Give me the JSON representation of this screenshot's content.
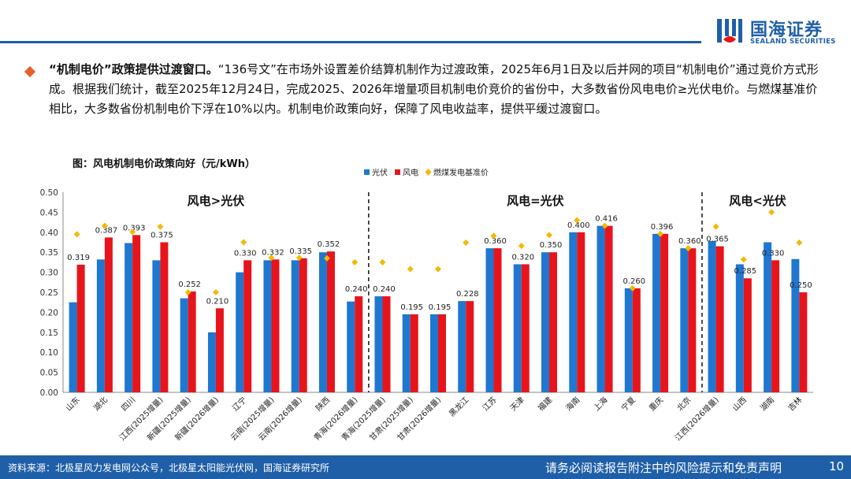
{
  "header": {
    "brand_cn": "国海证券",
    "brand_en": "SEALAND SECURITIES"
  },
  "body": {
    "lead_bold": "“机制电价”政策提供过渡窗口。",
    "text": "“136号文”在市场外设置差价结算机制作为过渡政策，2025年6月1日及以后并网的项目“机制电价”通过竞价方式形成。根据我们统计，截至2025年12月24日，完成2025、2026年增量项目机制电价竞价的省份中，大多数省份风电电价≥光伏电价。与燃煤基准价相比，大多数省份机制电价下浮在10%以内。机制电价政策向好，保障了风电收益率，提供平缓过渡窗口。"
  },
  "figure": {
    "title": "图：风电机制电价政策向好（元/kWh）"
  },
  "chart_data": {
    "type": "bar",
    "title": "图：风电机制电价政策向好（元/kWh）",
    "ylabel": "元/kWh",
    "ylim": [
      0,
      0.5
    ],
    "yticks": [
      "0.00",
      "0.05",
      "0.10",
      "0.15",
      "0.20",
      "0.25",
      "0.30",
      "0.35",
      "0.40",
      "0.45",
      "0.50"
    ],
    "categories": [
      "山东",
      "湖北",
      "四川",
      "江西(2025增量)",
      "新疆(2025增量)",
      "新疆(2026增量)",
      "辽宁",
      "云南(2025增量)",
      "云南(2026增量)",
      "陕西",
      "青海(2026增量)",
      "青海(2025增量)",
      "甘肃(2025增量)",
      "甘肃(2026增量)",
      "黑龙江",
      "江苏",
      "天津",
      "福建",
      "海南",
      "上海",
      "宁夏",
      "重庆",
      "北京",
      "江西(2026增量)",
      "山西",
      "湖南",
      "吉林"
    ],
    "series": [
      {
        "name": "光伏",
        "color": "#1f77d0",
        "values": [
          0.225,
          0.332,
          0.373,
          0.33,
          0.235,
          0.15,
          0.3,
          0.33,
          0.33,
          0.35,
          0.227,
          0.24,
          0.195,
          0.195,
          0.228,
          0.36,
          0.32,
          0.35,
          0.4,
          0.416,
          0.26,
          0.396,
          0.36,
          0.378,
          0.32,
          0.375,
          0.333
        ]
      },
      {
        "name": "风电",
        "color": "#e8141b",
        "values": [
          0.319,
          0.387,
          0.393,
          0.375,
          0.252,
          0.21,
          0.33,
          0.332,
          0.335,
          0.352,
          0.24,
          0.24,
          0.195,
          0.195,
          0.228,
          0.36,
          0.32,
          0.35,
          0.4,
          0.416,
          0.26,
          0.396,
          0.36,
          0.365,
          0.285,
          0.33,
          0.25
        ]
      },
      {
        "name": "燃煤发电基准价",
        "color": "#f5b800",
        "values": [
          0.395,
          0.416,
          0.401,
          0.414,
          0.25,
          0.25,
          0.375,
          0.336,
          0.336,
          0.335,
          0.325,
          0.325,
          0.308,
          0.308,
          0.374,
          0.391,
          0.366,
          0.393,
          0.43,
          0.416,
          0.26,
          0.396,
          0.36,
          0.414,
          0.332,
          0.45,
          0.374
        ]
      }
    ],
    "labels": [
      "0.319",
      "0.387",
      "0.393",
      "0.375",
      "0.252",
      "0.210",
      "0.330",
      "0.332",
      "0.335",
      "0.352",
      "0.240",
      "0.240",
      "0.195",
      "0.195",
      "0.228",
      "0.360",
      "0.320",
      "0.350",
      "0.400",
      "0.416",
      "0.260",
      "0.396",
      "0.360",
      "0.365",
      "0.285",
      "0.330",
      "0.250"
    ],
    "groups": [
      {
        "label": "风电>光伏",
        "start": 0,
        "end": 10
      },
      {
        "label": "风电=光伏",
        "start": 11,
        "end": 22
      },
      {
        "label": "风电<光伏",
        "start": 23,
        "end": 26
      }
    ],
    "legend_position": "top-center"
  },
  "footer": {
    "source": "资料来源：北极星风力发电网公众号，北极星太阳能光伏网，国海证券研究所",
    "disclaimer": "请务必阅读报告附注中的风险提示和免责声明",
    "page": "10"
  }
}
